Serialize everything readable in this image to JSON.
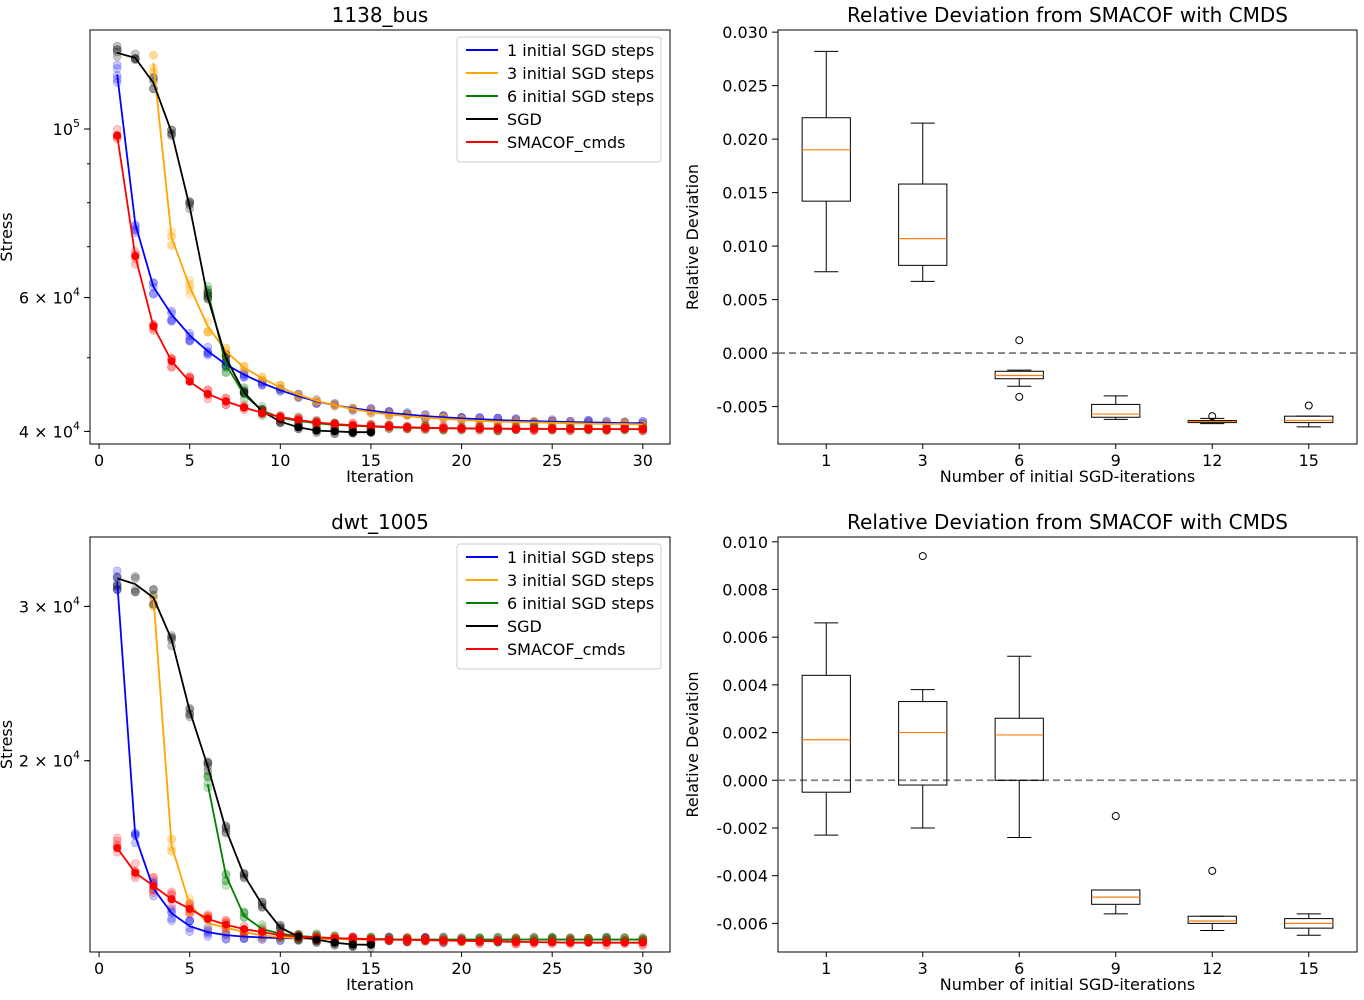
{
  "chart_data": [
    {
      "type": "line",
      "title": "1138_bus",
      "xlabel": "Iteration",
      "ylabel": "Stress",
      "yscale": "log",
      "xlim": [
        -0.5,
        31.5
      ],
      "ylim": [
        38500,
        135000
      ],
      "xticks": [
        0,
        5,
        10,
        15,
        20,
        25,
        30
      ],
      "yticks": [
        {
          "value": 100000,
          "base": "10",
          "exp": "5",
          "mant": ""
        },
        {
          "value": 60000,
          "base": "10",
          "exp": "4",
          "mant": "6 × "
        },
        {
          "value": 40000,
          "base": "10",
          "exp": "4",
          "mant": "4 × "
        }
      ],
      "legend_position": "top-right",
      "series": [
        {
          "name": "1 initial SGD steps",
          "color": "#0000ff",
          "x": [
            1,
            2,
            3,
            4,
            5,
            6,
            7,
            8,
            9,
            10,
            11,
            12,
            13,
            14,
            15,
            16,
            17,
            18,
            19,
            20,
            21,
            22,
            23,
            24,
            25,
            26,
            27,
            28,
            29,
            30
          ],
          "y": [
            118000,
            75000,
            62000,
            57000,
            53500,
            51000,
            49000,
            47500,
            46300,
            45300,
            44500,
            43800,
            43300,
            42900,
            42600,
            42300,
            42100,
            41900,
            41750,
            41600,
            41500,
            41400,
            41300,
            41250,
            41200,
            41150,
            41100,
            41050,
            41000,
            41000
          ]
        },
        {
          "name": "3 initial SGD steps",
          "color": "#ffa500",
          "x": [
            3,
            4,
            5,
            6,
            7,
            8,
            9,
            10,
            11,
            12,
            13,
            14,
            15,
            16,
            17,
            18,
            19,
            20,
            21,
            22,
            23,
            24,
            25,
            26,
            27,
            28,
            29,
            30
          ],
          "y": [
            122000,
            72000,
            62000,
            55000,
            51000,
            48500,
            47000,
            45700,
            44700,
            43900,
            43300,
            42800,
            42400,
            42100,
            41900,
            41700,
            41550,
            41400,
            41300,
            41200,
            41150,
            41100,
            41050,
            41000,
            40950,
            40900,
            40900,
            40850
          ]
        },
        {
          "name": "6 initial SGD steps",
          "color": "#008000",
          "x": [
            6,
            7,
            8,
            9,
            10,
            11,
            12,
            13,
            14,
            15,
            16,
            17,
            18,
            19,
            20,
            21,
            22,
            23,
            24,
            25,
            26,
            27,
            28,
            29,
            30
          ],
          "y": [
            61000,
            49000,
            44700,
            42600,
            41700,
            41300,
            41000,
            40800,
            40700,
            40600,
            40500,
            40450,
            40400,
            40380,
            40350,
            40330,
            40320,
            40310,
            40300,
            40300,
            40290,
            40280,
            40280,
            40270,
            40270
          ]
        },
        {
          "name": "SGD",
          "color": "#000000",
          "x": [
            1,
            2,
            3,
            4,
            5,
            6,
            7,
            8,
            9,
            10,
            11,
            12,
            13,
            14,
            15
          ],
          "y": [
            126000,
            124000,
            115000,
            99000,
            79000,
            60000,
            50000,
            45000,
            42500,
            41200,
            40500,
            40100,
            40000,
            39900,
            39900
          ]
        },
        {
          "name": "SMACOF_cmds",
          "color": "#ff0000",
          "x": [
            1,
            2,
            3,
            4,
            5,
            6,
            7,
            8,
            9,
            10,
            11,
            12,
            13,
            14,
            15,
            16,
            17,
            18,
            19,
            20,
            21,
            22,
            23,
            24,
            25,
            26,
            27,
            28,
            29,
            30
          ],
          "y": [
            98000,
            68000,
            55000,
            49500,
            46500,
            44800,
            43800,
            43000,
            42300,
            41800,
            41400,
            41100,
            40900,
            40750,
            40650,
            40550,
            40500,
            40450,
            40400,
            40380,
            40350,
            40330,
            40320,
            40310,
            40300,
            40300,
            40290,
            40280,
            40280,
            40270
          ]
        }
      ]
    },
    {
      "type": "box",
      "title": "Relative Deviation from SMACOF with CMDS",
      "xlabel": "Number of initial SGD-iterations",
      "ylabel": "Relative Deviation",
      "ylim": [
        -0.0085,
        0.0302
      ],
      "yticks": [
        "-0.005",
        "0.000",
        "0.005",
        "0.010",
        "0.015",
        "0.020",
        "0.025",
        "0.030"
      ],
      "categories": [
        "1",
        "3",
        "6",
        "9",
        "12",
        "15"
      ],
      "reference_line": 0.0,
      "boxes": [
        {
          "whislo": 0.0076,
          "q1": 0.0142,
          "med": 0.019,
          "q3": 0.022,
          "whishi": 0.0282,
          "fliers": []
        },
        {
          "whislo": 0.0067,
          "q1": 0.0082,
          "med": 0.0107,
          "q3": 0.0158,
          "whishi": 0.0215,
          "fliers": []
        },
        {
          "whislo": -0.0031,
          "q1": -0.0024,
          "med": -0.0021,
          "q3": -0.0017,
          "whishi": -0.0016,
          "fliers": [
            0.0012,
            -0.0041
          ]
        },
        {
          "whislo": -0.0062,
          "q1": -0.006,
          "med": -0.0057,
          "q3": -0.0048,
          "whishi": -0.004,
          "fliers": []
        },
        {
          "whislo": -0.0066,
          "q1": -0.0065,
          "med": -0.0064,
          "q3": -0.0063,
          "whishi": -0.0061,
          "fliers": [
            -0.0059
          ]
        },
        {
          "whislo": -0.0069,
          "q1": -0.0065,
          "med": -0.0063,
          "q3": -0.0059,
          "whishi": -0.0059,
          "fliers": [
            -0.0049
          ]
        }
      ]
    },
    {
      "type": "line",
      "title": "dwt_1005",
      "xlabel": "Iteration",
      "ylabel": "Stress",
      "yscale": "log",
      "xlim": [
        -0.5,
        31.5
      ],
      "ylim": [
        12100,
        36000
      ],
      "xticks": [
        0,
        5,
        10,
        15,
        20,
        25,
        30
      ],
      "yticks": [
        {
          "value": 30000,
          "base": "10",
          "exp": "4",
          "mant": "3 × "
        },
        {
          "value": 20000,
          "base": "10",
          "exp": "4",
          "mant": "2 × "
        }
      ],
      "legend_position": "top-right",
      "series": [
        {
          "name": "1 initial SGD steps",
          "color": "#0000ff",
          "x": [
            1,
            2,
            3,
            4,
            5,
            6,
            7,
            8,
            9,
            10,
            11,
            12,
            13,
            14,
            15,
            16,
            17,
            18,
            19,
            20,
            21,
            22,
            23,
            24,
            25,
            26,
            27,
            28,
            29,
            30
          ],
          "y": [
            32000,
            16400,
            14300,
            13400,
            12950,
            12750,
            12650,
            12600,
            12570,
            12550,
            12540,
            12530,
            12520,
            12520,
            12510,
            12510,
            12500,
            12500,
            12500,
            12500,
            12500,
            12500,
            12500,
            12500,
            12500,
            12500,
            12500,
            12500,
            12500,
            12500
          ]
        },
        {
          "name": "3 initial SGD steps",
          "color": "#ffa500",
          "x": [
            3,
            4,
            5,
            6,
            7,
            8,
            9,
            10,
            11,
            12,
            13,
            14,
            15,
            16,
            17,
            18,
            19,
            20,
            21,
            22,
            23,
            24,
            25,
            26,
            27,
            28,
            29,
            30
          ],
          "y": [
            30800,
            16000,
            13700,
            13050,
            12900,
            12750,
            12640,
            12580,
            12550,
            12530,
            12520,
            12510,
            12510,
            12500,
            12500,
            12500,
            12500,
            12500,
            12500,
            12500,
            12500,
            12500,
            12500,
            12500,
            12500,
            12500,
            12500,
            12500
          ]
        },
        {
          "name": "6 initial SGD steps",
          "color": "#008000",
          "x": [
            6,
            7,
            8,
            9,
            10,
            11,
            12,
            13,
            14,
            15,
            16,
            17,
            18,
            19,
            20,
            21,
            22,
            23,
            24,
            25,
            26,
            27,
            28,
            29,
            30
          ],
          "y": [
            18800,
            14800,
            13300,
            12850,
            12700,
            12620,
            12580,
            12550,
            12530,
            12520,
            12510,
            12500,
            12500,
            12500,
            12500,
            12500,
            12500,
            12500,
            12500,
            12500,
            12500,
            12500,
            12500,
            12500,
            12500
          ]
        },
        {
          "name": "SGD",
          "color": "#000000",
          "x": [
            1,
            2,
            3,
            4,
            5,
            6,
            7,
            8,
            9,
            10,
            11,
            12,
            13,
            14,
            15
          ],
          "y": [
            32300,
            31800,
            30700,
            27500,
            22800,
            19700,
            16700,
            14800,
            13700,
            12900,
            12600,
            12500,
            12400,
            12340,
            12330
          ]
        },
        {
          "name": "SMACOF_cmds",
          "color": "#ff0000",
          "x": [
            1,
            2,
            3,
            4,
            5,
            6,
            7,
            8,
            9,
            10,
            11,
            12,
            13,
            14,
            15,
            16,
            17,
            18,
            19,
            20,
            21,
            22,
            23,
            24,
            25,
            26,
            27,
            28,
            29,
            30
          ],
          "y": [
            15900,
            14900,
            14400,
            13900,
            13550,
            13200,
            13000,
            12850,
            12750,
            12650,
            12600,
            12570,
            12550,
            12530,
            12510,
            12500,
            12490,
            12480,
            12470,
            12460,
            12450,
            12440,
            12430,
            12420,
            12410,
            12400,
            12400,
            12400,
            12400,
            12400
          ]
        }
      ]
    },
    {
      "type": "box",
      "title": "Relative Deviation from SMACOF with CMDS",
      "xlabel": "Number of initial SGD-iterations",
      "ylabel": "Relative Deviation",
      "ylim": [
        -0.0072,
        0.0102
      ],
      "yticks": [
        "-0.006",
        "-0.004",
        "-0.002",
        "0.000",
        "0.002",
        "0.004",
        "0.006",
        "0.008",
        "0.010"
      ],
      "categories": [
        "1",
        "3",
        "6",
        "9",
        "12",
        "15"
      ],
      "reference_line": 0.0,
      "boxes": [
        {
          "whislo": -0.0023,
          "q1": -0.0005,
          "med": 0.0017,
          "q3": 0.0044,
          "whishi": 0.0066,
          "fliers": []
        },
        {
          "whislo": -0.002,
          "q1": -0.0002,
          "med": 0.002,
          "q3": 0.0033,
          "whishi": 0.0038,
          "fliers": [
            0.0094
          ]
        },
        {
          "whislo": -0.0024,
          "q1": 0.0,
          "med": 0.0019,
          "q3": 0.0026,
          "whishi": 0.0052,
          "fliers": []
        },
        {
          "whislo": -0.0056,
          "q1": -0.0052,
          "med": -0.0049,
          "q3": -0.0046,
          "whishi": -0.0046,
          "fliers": [
            -0.0015
          ]
        },
        {
          "whislo": -0.0063,
          "q1": -0.006,
          "med": -0.0059,
          "q3": -0.0057,
          "whishi": -0.0057,
          "fliers": [
            -0.0038
          ]
        },
        {
          "whislo": -0.0065,
          "q1": -0.0062,
          "med": -0.006,
          "q3": -0.0058,
          "whishi": -0.0056,
          "fliers": []
        }
      ]
    }
  ]
}
